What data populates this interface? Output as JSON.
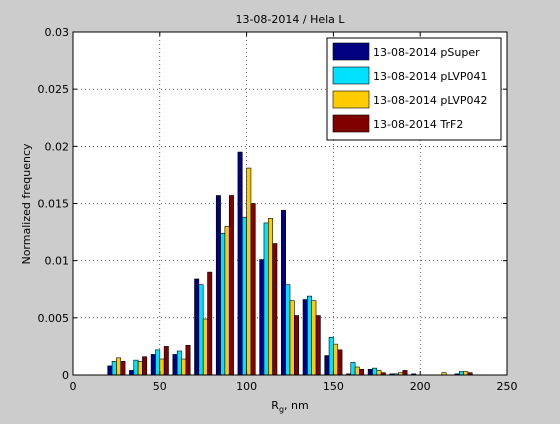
{
  "chart_data": {
    "type": "bar",
    "title": "13-08-2014 / Hela L",
    "xlabel": {
      "main": "R",
      "sub": "g",
      "rest": ", nm"
    },
    "ylabel": "Normalized frequency",
    "xlim": [
      0,
      250
    ],
    "ylim": [
      0,
      0.03
    ],
    "xticks": [
      "0",
      "50",
      "100",
      "150",
      "200",
      "250"
    ],
    "yticks": [
      "0",
      "0.005",
      "0.01",
      "0.015",
      "0.02",
      "0.025",
      "0.03"
    ],
    "grid": true,
    "legend_position": "top-right",
    "bin_centers": [
      25,
      37.5,
      50,
      62.5,
      75,
      87.5,
      100,
      112.5,
      125,
      137.5,
      150,
      162.5,
      175,
      187.5,
      200,
      212.5,
      225
    ],
    "series": [
      {
        "name": "13-08-2014 pSuper",
        "color": "#000080",
        "values": [
          0.0008,
          0.0004,
          0.0018,
          0.0018,
          0.0084,
          0.0157,
          0.0195,
          0.0101,
          0.0144,
          0.0066,
          0.0017,
          0.0001,
          0.0005,
          0.0001,
          0.0001,
          0.0,
          0.0001
        ]
      },
      {
        "name": "13-08-2014 pLVP041",
        "color": "#00e0ff",
        "values": [
          0.0012,
          0.0013,
          0.0022,
          0.0021,
          0.0079,
          0.0124,
          0.0138,
          0.0133,
          0.0079,
          0.0069,
          0.0033,
          0.0011,
          0.0006,
          0.0001,
          0.0,
          0.0,
          0.0003
        ]
      },
      {
        "name": "13-08-2014 pLVP042",
        "color": "#ffcc00",
        "values": [
          0.0015,
          0.0012,
          0.0014,
          0.0014,
          0.0049,
          0.013,
          0.0181,
          0.0137,
          0.0065,
          0.0065,
          0.0027,
          0.0007,
          0.0004,
          0.0002,
          0.0,
          0.0002,
          0.0003
        ]
      },
      {
        "name": "13-08-2014 TrF2",
        "color": "#800000",
        "values": [
          0.0012,
          0.0016,
          0.0025,
          0.0026,
          0.009,
          0.0157,
          0.015,
          0.0115,
          0.0052,
          0.0052,
          0.0022,
          0.0005,
          0.0002,
          0.0004,
          0.0,
          0.0,
          0.0002
        ]
      }
    ]
  }
}
